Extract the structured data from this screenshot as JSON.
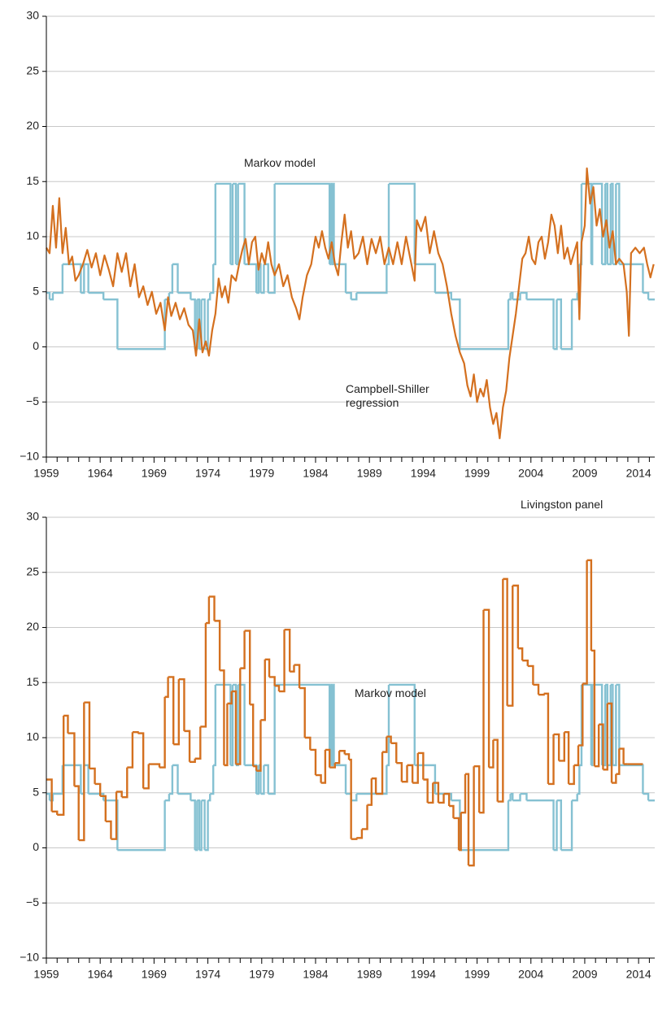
{
  "chart_data": [
    {
      "type": "line",
      "xlim": [
        1959,
        2015.5
      ],
      "ylim": [
        -10,
        30
      ],
      "xticks": [
        1959,
        1964,
        1969,
        1974,
        1979,
        1984,
        1989,
        1994,
        1999,
        2004,
        2009,
        2014
      ],
      "xticks_minor": [
        1960,
        1961,
        1962,
        1963,
        1965,
        1966,
        1967,
        1968,
        1970,
        1971,
        1972,
        1973,
        1975,
        1976,
        1977,
        1978,
        1980,
        1981,
        1982,
        1983,
        1985,
        1986,
        1987,
        1988,
        1990,
        1991,
        1992,
        1993,
        1995,
        1996,
        1997,
        1998,
        2000,
        2001,
        2002,
        2003,
        2005,
        2006,
        2007,
        2008,
        2010,
        2011,
        2012,
        2013,
        2015
      ],
      "yticks": [
        {
          "value": -10,
          "label": "−10"
        },
        {
          "value": -5,
          "label": "−5"
        },
        0,
        5,
        10,
        15,
        20,
        25,
        30
      ],
      "grid": true,
      "series": [
        {
          "name": "Markov model",
          "color": "#85c1d2",
          "drawstyle": "steps-post",
          "x": [
            1959.0,
            1959.3,
            1959.6,
            1960.5,
            1962.2,
            1962.5,
            1962.9,
            1964.3,
            1965.6,
            1970.0,
            1970.4,
            1970.7,
            1971.2,
            1972.4,
            1972.8,
            1973.0,
            1973.2,
            1973.4,
            1973.7,
            1974.0,
            1974.2,
            1974.5,
            1974.7,
            1976.1,
            1976.3,
            1976.6,
            1976.8,
            1977.4,
            1978.5,
            1978.7,
            1978.9,
            1979.2,
            1979.6,
            1980.2,
            1985.3,
            1985.4,
            1985.5,
            1985.6,
            1985.7,
            1986.8,
            1987.3,
            1987.8,
            1990.6,
            1990.8,
            1993.2,
            1995.1,
            1996.6,
            1997.4,
            2001.9,
            2002.1,
            2002.3,
            2003.0,
            2003.6,
            2006.1,
            2006.4,
            2006.8,
            2007.8,
            2008.3,
            2008.5,
            2008.7,
            2009.6,
            2009.7,
            2010.6,
            2010.9,
            2011.1,
            2011.4,
            2011.6,
            2011.9,
            2012.2,
            2014.4,
            2014.9,
            2015.5
          ],
          "values": [
            4.9,
            4.3,
            4.9,
            7.5,
            4.9,
            7.5,
            4.9,
            4.3,
            -0.2,
            4.3,
            4.9,
            7.5,
            4.9,
            4.3,
            -0.2,
            4.3,
            -0.2,
            4.3,
            -0.2,
            4.3,
            4.9,
            7.5,
            14.8,
            7.5,
            14.8,
            7.5,
            14.8,
            7.5,
            4.9,
            7.5,
            4.9,
            7.5,
            4.9,
            14.8,
            7.5,
            14.8,
            7.5,
            14.8,
            7.5,
            4.9,
            4.3,
            4.9,
            7.5,
            14.8,
            7.5,
            4.9,
            4.3,
            -0.2,
            4.3,
            4.9,
            4.3,
            4.9,
            4.3,
            -0.2,
            4.3,
            -0.2,
            4.3,
            4.9,
            7.5,
            14.8,
            7.5,
            14.8,
            7.5,
            14.8,
            7.5,
            14.8,
            7.5,
            14.8,
            7.5,
            4.9,
            4.3,
            4.3
          ]
        },
        {
          "name": "Campbell-Shiller regression",
          "color": "#d4701f",
          "drawstyle": "line",
          "x": [
            1959.0,
            1959.3,
            1959.6,
            1959.9,
            1960.2,
            1960.5,
            1960.8,
            1961.1,
            1961.4,
            1961.7,
            1962.0,
            1962.4,
            1962.8,
            1963.2,
            1963.6,
            1964.0,
            1964.4,
            1964.8,
            1965.2,
            1965.6,
            1966.0,
            1966.4,
            1966.8,
            1967.2,
            1967.6,
            1968.0,
            1968.4,
            1968.8,
            1969.2,
            1969.6,
            1970.0,
            1970.3,
            1970.6,
            1971.0,
            1971.4,
            1971.8,
            1972.2,
            1972.6,
            1972.9,
            1973.2,
            1973.5,
            1973.8,
            1974.1,
            1974.4,
            1974.7,
            1975.0,
            1975.3,
            1975.6,
            1975.9,
            1976.2,
            1976.6,
            1976.9,
            1977.2,
            1977.5,
            1977.8,
            1978.1,
            1978.4,
            1978.7,
            1979.0,
            1979.3,
            1979.6,
            1979.9,
            1980.2,
            1980.6,
            1981.0,
            1981.4,
            1981.8,
            1982.2,
            1982.5,
            1982.8,
            1983.2,
            1983.6,
            1984.0,
            1984.3,
            1984.6,
            1984.9,
            1985.2,
            1985.5,
            1985.8,
            1986.1,
            1986.4,
            1986.7,
            1987.0,
            1987.3,
            1987.6,
            1988.0,
            1988.4,
            1988.8,
            1989.2,
            1989.6,
            1990.0,
            1990.4,
            1990.8,
            1991.2,
            1991.6,
            1992.0,
            1992.4,
            1992.8,
            1993.2,
            1993.4,
            1993.8,
            1994.2,
            1994.6,
            1995.0,
            1995.4,
            1995.8,
            1996.2,
            1996.6,
            1997.0,
            1997.4,
            1997.8,
            1998.1,
            1998.4,
            1998.7,
            1999.0,
            1999.3,
            1999.6,
            1999.9,
            2000.2,
            2000.5,
            2000.8,
            2001.1,
            2001.4,
            2001.7,
            2002.0,
            2002.3,
            2002.6,
            2002.9,
            2003.2,
            2003.5,
            2003.8,
            2004.1,
            2004.4,
            2004.7,
            2005.0,
            2005.3,
            2005.6,
            2005.9,
            2006.2,
            2006.5,
            2006.8,
            2007.1,
            2007.4,
            2007.7,
            2008.0,
            2008.3,
            2008.5,
            2008.7,
            2009.0,
            2009.2,
            2009.5,
            2009.8,
            2010.1,
            2010.4,
            2010.7,
            2011.0,
            2011.3,
            2011.6,
            2011.9,
            2012.2,
            2012.6,
            2012.9,
            2013.1,
            2013.3,
            2013.7,
            2014.1,
            2014.5,
            2014.8,
            2015.1,
            2015.4
          ],
          "values": [
            9,
            8.5,
            12.8,
            9,
            13.5,
            8.5,
            10.8,
            7.5,
            8.2,
            6,
            6.5,
            7.5,
            8.8,
            7.2,
            8.5,
            6.5,
            8.3,
            7,
            5.5,
            8.5,
            6.8,
            8.5,
            5.5,
            7.5,
            4.5,
            5.5,
            3.8,
            5,
            3,
            4,
            1.5,
            4.5,
            2.8,
            4,
            2.5,
            3.5,
            2,
            1.5,
            -0.8,
            2.5,
            -0.5,
            0.5,
            -0.8,
            1.5,
            3,
            6.2,
            4.5,
            5.5,
            4,
            6.5,
            6,
            7.5,
            8.8,
            9.8,
            7.5,
            9.5,
            10,
            7,
            8.5,
            7.5,
            9.5,
            7.5,
            6.5,
            7.5,
            5.5,
            6.5,
            4.5,
            3.5,
            2.5,
            4.5,
            6.5,
            7.5,
            10,
            9,
            10.5,
            9,
            8,
            9.5,
            7.5,
            6.5,
            9.5,
            12,
            9,
            10.5,
            8,
            8.5,
            10,
            7.5,
            9.8,
            8.5,
            10,
            7.5,
            9,
            7.5,
            9.5,
            7.5,
            10,
            8,
            6,
            11.5,
            10.5,
            11.8,
            8.5,
            10.5,
            8.5,
            7.5,
            5.5,
            3,
            1,
            -0.5,
            -1.5,
            -3.5,
            -4.5,
            -2.5,
            -5,
            -3.8,
            -4.5,
            -3,
            -5.5,
            -7,
            -6,
            -8.3,
            -5.5,
            -4,
            -1,
            1,
            3,
            5.5,
            8,
            8.5,
            10,
            8,
            7.5,
            9.5,
            10,
            8,
            9.5,
            12,
            11,
            8.5,
            11,
            8,
            9,
            7.5,
            8.5,
            9.5,
            2.5,
            9.5,
            11,
            16.2,
            13,
            14.5,
            11,
            12.5,
            10,
            11.5,
            9,
            10.5,
            7.5,
            8,
            7.5,
            5,
            1,
            8.5,
            9,
            8.5,
            9,
            7.5,
            6.3,
            7.5
          ]
        }
      ]
    },
    {
      "type": "line",
      "xlim": [
        1959,
        2015.5
      ],
      "ylim": [
        -10,
        30
      ],
      "xticks": [
        1959,
        1964,
        1969,
        1974,
        1979,
        1984,
        1989,
        1994,
        1999,
        2004,
        2009,
        2014
      ],
      "xticks_minor": [
        1960,
        1961,
        1962,
        1963,
        1965,
        1966,
        1967,
        1968,
        1970,
        1971,
        1972,
        1973,
        1975,
        1976,
        1977,
        1978,
        1980,
        1981,
        1982,
        1983,
        1985,
        1986,
        1987,
        1988,
        1990,
        1991,
        1992,
        1993,
        1995,
        1996,
        1997,
        1998,
        2000,
        2001,
        2002,
        2003,
        2005,
        2006,
        2007,
        2008,
        2010,
        2011,
        2012,
        2013,
        2015
      ],
      "yticks": [
        {
          "value": -10,
          "label": "−10"
        },
        {
          "value": -5,
          "label": "−5"
        },
        0,
        5,
        10,
        15,
        20,
        25,
        30
      ],
      "grid": true,
      "series": [
        {
          "name": "Markov model",
          "color": "#85c1d2",
          "drawstyle": "steps-post",
          "x": [
            1959.0,
            1959.3,
            1959.6,
            1960.5,
            1962.2,
            1962.5,
            1962.9,
            1964.3,
            1965.6,
            1970.0,
            1970.4,
            1970.7,
            1971.2,
            1972.4,
            1972.8,
            1973.0,
            1973.2,
            1973.4,
            1973.7,
            1974.0,
            1974.2,
            1974.5,
            1974.7,
            1976.1,
            1976.3,
            1976.6,
            1976.8,
            1977.4,
            1978.5,
            1978.7,
            1978.9,
            1979.2,
            1979.6,
            1980.2,
            1985.3,
            1985.4,
            1985.5,
            1985.6,
            1985.7,
            1986.8,
            1987.3,
            1987.8,
            1990.6,
            1990.8,
            1993.2,
            1995.1,
            1996.6,
            1997.4,
            2001.9,
            2002.1,
            2002.3,
            2003.0,
            2003.6,
            2006.1,
            2006.4,
            2006.8,
            2007.8,
            2008.3,
            2008.5,
            2008.7,
            2009.6,
            2009.7,
            2010.6,
            2010.9,
            2011.1,
            2011.4,
            2011.6,
            2011.9,
            2012.2,
            2014.4,
            2014.9,
            2015.5
          ],
          "values": [
            4.9,
            4.3,
            4.9,
            7.5,
            4.9,
            7.5,
            4.9,
            4.3,
            -0.2,
            4.3,
            4.9,
            7.5,
            4.9,
            4.3,
            -0.2,
            4.3,
            -0.2,
            4.3,
            -0.2,
            4.3,
            4.9,
            7.5,
            14.8,
            7.5,
            14.8,
            7.5,
            14.8,
            7.5,
            4.9,
            7.5,
            4.9,
            7.5,
            4.9,
            14.8,
            7.5,
            14.8,
            7.5,
            14.8,
            7.5,
            4.9,
            4.3,
            4.9,
            7.5,
            14.8,
            7.5,
            4.9,
            4.3,
            -0.2,
            4.3,
            4.9,
            4.3,
            4.9,
            4.3,
            -0.2,
            4.3,
            -0.2,
            4.3,
            4.9,
            7.5,
            14.8,
            7.5,
            14.8,
            7.5,
            14.8,
            7.5,
            14.8,
            7.5,
            14.8,
            7.5,
            4.9,
            4.3,
            4.3
          ]
        },
        {
          "name": "Livingston panel",
          "color": "#d4701f",
          "drawstyle": "steps-post",
          "x": [
            1959.0,
            1959.5,
            1960.0,
            1960.6,
            1961.0,
            1961.6,
            1962.0,
            1962.5,
            1963.0,
            1963.5,
            1964.0,
            1964.5,
            1965.0,
            1965.5,
            1966.0,
            1966.5,
            1967.0,
            1967.5,
            1968.0,
            1968.5,
            1969.5,
            1970.0,
            1970.3,
            1970.8,
            1971.3,
            1971.8,
            1972.3,
            1972.8,
            1973.3,
            1973.8,
            1974.1,
            1974.6,
            1975.1,
            1975.5,
            1975.8,
            1976.2,
            1976.6,
            1977.0,
            1977.4,
            1977.9,
            1978.2,
            1978.5,
            1978.9,
            1979.3,
            1979.7,
            1980.2,
            1980.6,
            1981.1,
            1981.6,
            1982.0,
            1982.5,
            1983.0,
            1983.5,
            1984.0,
            1984.5,
            1984.9,
            1985.3,
            1985.8,
            1986.2,
            1986.7,
            1987.1,
            1987.3,
            1987.8,
            1988.3,
            1988.8,
            1989.2,
            1989.6,
            1990.2,
            1990.6,
            1991.0,
            1991.5,
            1992.0,
            1992.5,
            1993.0,
            1993.5,
            1994.0,
            1994.4,
            1994.9,
            1995.4,
            1995.9,
            1996.4,
            1996.8,
            1997.3,
            1997.5,
            1997.9,
            1998.2,
            1998.7,
            1999.2,
            1999.6,
            2000.1,
            2000.5,
            2000.9,
            2001.4,
            2001.8,
            2002.3,
            2002.8,
            2003.2,
            2003.7,
            2004.2,
            2004.7,
            2005.2,
            2005.6,
            2006.1,
            2006.6,
            2007.1,
            2007.5,
            2008.0,
            2008.4,
            2008.8,
            2009.2,
            2009.6,
            2009.9,
            2010.3,
            2010.7,
            2011.1,
            2011.5,
            2011.9,
            2012.2,
            2012.6,
            2013.0,
            2014.4
          ],
          "values": [
            6.2,
            3.3,
            3.0,
            12,
            10.4,
            5.6,
            0.7,
            13.2,
            7.2,
            5.8,
            4.7,
            2.4,
            0.8,
            5.1,
            4.6,
            7.3,
            10.5,
            10.4,
            5.4,
            7.6,
            7.3,
            13.7,
            15.5,
            9.4,
            15.3,
            10.6,
            7.8,
            8.1,
            11.0,
            20.4,
            22.8,
            20.6,
            16.1,
            7.5,
            13.1,
            14.2,
            7.6,
            16.3,
            19.7,
            13.0,
            7.4,
            7.0,
            11.6,
            17.1,
            15.5,
            14.7,
            14.2,
            19.8,
            16,
            16.6,
            14.5,
            10,
            8.9,
            6.6,
            5.9,
            8.9,
            7.3,
            7.7,
            8.8,
            8.5,
            8,
            0.8,
            0.9,
            1.7,
            3.9,
            6.3,
            4.9,
            8.7,
            10.1,
            9.5,
            7.7,
            6.0,
            7.5,
            5.9,
            8.6,
            6.2,
            4.1,
            5.9,
            4.1,
            4.9,
            3.8,
            2.7,
            -0.2,
            3.2,
            6.7,
            -1.6,
            7.4,
            3.2,
            21.6,
            7.3,
            9.8,
            4.2,
            24.4,
            12.9,
            23.8,
            18.1,
            17.0,
            16.5,
            14.8,
            13.9,
            14.0,
            5.8,
            10.3,
            7.9,
            10.5,
            5.8,
            7.5,
            9.3,
            14.9,
            26.1,
            17.9,
            7.4,
            11.2,
            7.1,
            13.1,
            5.9,
            6.7,
            9.0,
            7.6,
            7.6,
            7.6
          ]
        }
      ]
    }
  ]
}
